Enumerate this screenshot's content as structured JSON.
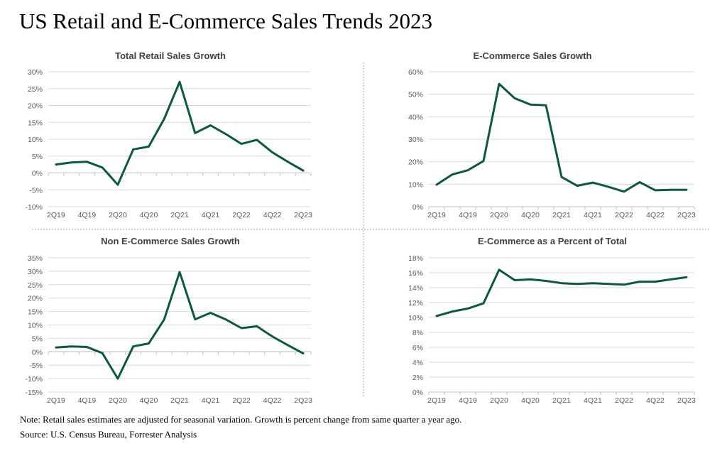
{
  "title": "US Retail and E-Commerce Sales Trends 2023",
  "note": "Note: Retail sales estimates are adjusted for seasonal variation. Growth is percent change from same quarter a year ago.",
  "source": "Source: U.S. Census Bureau, Forrester Analysis",
  "colors": {
    "line": "#0b5a3d",
    "negative_tick": "#ff0000",
    "tick": "#595959",
    "grid": "#d9d9d9"
  },
  "chart_data": [
    {
      "type": "line",
      "title": "Total Retail Sales Growth",
      "categories": [
        "2Q19",
        "3Q19",
        "4Q19",
        "1Q20",
        "2Q20",
        "3Q20",
        "4Q20",
        "1Q21",
        "2Q21",
        "3Q21",
        "4Q21",
        "1Q22",
        "2Q22",
        "3Q22",
        "4Q22",
        "1Q23",
        "2Q23"
      ],
      "x_tick_labels": [
        "2Q19",
        "4Q19",
        "2Q20",
        "4Q20",
        "2Q21",
        "4Q21",
        "2Q22",
        "4Q22",
        "2Q23"
      ],
      "values": [
        2.5,
        3.1,
        3.3,
        1.6,
        -3.5,
        7.0,
        7.8,
        16.0,
        27.0,
        11.8,
        14.1,
        11.5,
        8.6,
        9.8,
        6.1,
        3.3,
        0.7
      ],
      "ylim": [
        -10,
        30
      ],
      "ystep": 5,
      "unit": "%",
      "grid": true
    },
    {
      "type": "line",
      "title": "E-Commerce Sales Growth",
      "categories": [
        "2Q19",
        "3Q19",
        "4Q19",
        "1Q20",
        "2Q20",
        "3Q20",
        "4Q20",
        "1Q21",
        "2Q21",
        "3Q21",
        "4Q21",
        "1Q22",
        "2Q22",
        "3Q22",
        "4Q22",
        "1Q23",
        "2Q23"
      ],
      "x_tick_labels": [
        "2Q19",
        "4Q19",
        "2Q20",
        "4Q20",
        "2Q21",
        "4Q21",
        "2Q22",
        "4Q22",
        "2Q23"
      ],
      "values": [
        9.8,
        14.3,
        16.2,
        20.3,
        54.6,
        48.2,
        45.4,
        45.1,
        13.2,
        9.3,
        10.7,
        8.8,
        6.7,
        10.9,
        7.3,
        7.5,
        7.5
      ],
      "ylim": [
        0,
        60
      ],
      "ystep": 10,
      "unit": "%",
      "grid": true
    },
    {
      "type": "line",
      "title": "Non E-Commerce Sales Growth",
      "categories": [
        "2Q19",
        "3Q19",
        "4Q19",
        "1Q20",
        "2Q20",
        "3Q20",
        "4Q20",
        "1Q21",
        "2Q21",
        "3Q21",
        "4Q21",
        "1Q22",
        "2Q22",
        "3Q22",
        "4Q22",
        "1Q23",
        "2Q23"
      ],
      "x_tick_labels": [
        "2Q19",
        "4Q19",
        "2Q20",
        "4Q20",
        "2Q21",
        "4Q21",
        "2Q22",
        "4Q22",
        "2Q23"
      ],
      "values": [
        1.6,
        2.0,
        1.8,
        -0.5,
        -10.0,
        2.0,
        3.1,
        12.0,
        29.7,
        12.1,
        14.5,
        12.0,
        8.8,
        9.5,
        5.7,
        2.5,
        -0.6
      ],
      "ylim": [
        -15,
        35
      ],
      "ystep": 5,
      "unit": "%",
      "grid": true
    },
    {
      "type": "line",
      "title": "E-Commerce as a Percent of Total",
      "categories": [
        "2Q19",
        "3Q19",
        "4Q19",
        "1Q20",
        "2Q20",
        "3Q20",
        "4Q20",
        "1Q21",
        "2Q21",
        "3Q21",
        "4Q21",
        "1Q22",
        "2Q22",
        "3Q22",
        "4Q22",
        "1Q23",
        "2Q23"
      ],
      "x_tick_labels": [
        "2Q19",
        "4Q19",
        "2Q20",
        "4Q20",
        "2Q21",
        "4Q21",
        "2Q22",
        "4Q22",
        "2Q23"
      ],
      "values": [
        10.2,
        10.8,
        11.2,
        11.9,
        16.4,
        15.0,
        15.1,
        14.9,
        14.6,
        14.5,
        14.6,
        14.5,
        14.4,
        14.8,
        14.8,
        15.1,
        15.4
      ],
      "ylim": [
        0,
        18
      ],
      "ystep": 2,
      "unit": "%",
      "grid": true
    }
  ]
}
